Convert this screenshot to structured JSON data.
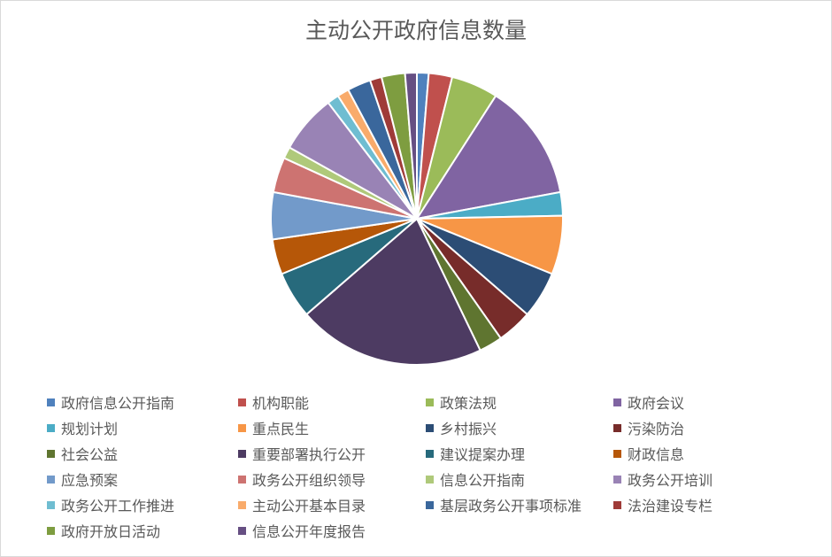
{
  "chart_data": {
    "type": "pie",
    "title": "主动公开政府信息数量",
    "legend_position": "bottom",
    "categories": [
      "政府信息公开指南",
      "机构职能",
      "政策法规",
      "政府会议",
      "规划计划",
      "重点民生",
      "乡村振兴",
      "污染防治",
      "社会公益",
      "重要部署执行公开",
      "建议提案办理",
      "财政信息",
      "应急预案",
      "政务公开组织领导",
      "信息公开指南",
      "政务公开培训",
      "政务公开工作推进",
      "主动公开基本目录",
      "基层政务公开事项标准",
      "法治建设专栏",
      "政府开放日活动",
      "信息公开年度报告"
    ],
    "values": [
      1,
      2,
      4,
      10,
      2,
      5,
      4,
      3,
      2,
      16,
      4,
      3,
      4,
      3,
      1,
      5,
      1,
      1,
      2,
      1,
      2,
      1
    ],
    "colors": [
      "#4F81BD",
      "#C0504D",
      "#9BBB59",
      "#8064A2",
      "#4BACC6",
      "#F79646",
      "#2C4D75",
      "#772C2A",
      "#5F7530",
      "#4D3B62",
      "#276A7C",
      "#B65708",
      "#729ACA",
      "#CD7371",
      "#AFC97A",
      "#9983B5",
      "#6FBDD1",
      "#F9AB6B",
      "#3A679C",
      "#9F3B38",
      "#7E9D40",
      "#664F83"
    ]
  }
}
